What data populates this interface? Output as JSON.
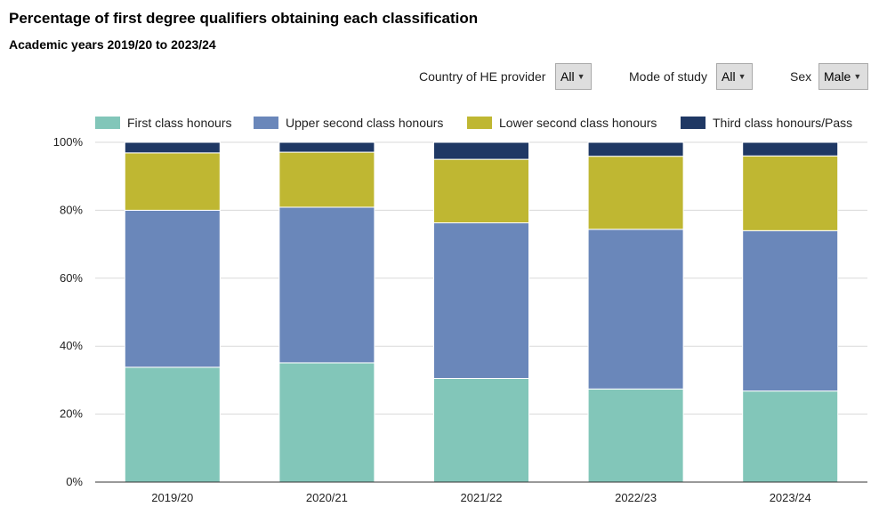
{
  "header": {
    "title": "Percentage of first degree qualifiers obtaining each classification",
    "subtitle": "Academic years 2019/20 to 2023/24"
  },
  "filters": {
    "country": {
      "label": "Country of HE provider",
      "value": "All"
    },
    "mode": {
      "label": "Mode of study",
      "value": "All"
    },
    "sex": {
      "label": "Sex",
      "value": "Male"
    }
  },
  "icons": {
    "dropdown_caret": "caret-down-icon"
  },
  "chart_data": {
    "type": "bar",
    "stacked": true,
    "categories": [
      "2019/20",
      "2020/21",
      "2021/22",
      "2022/23",
      "2023/24"
    ],
    "series": [
      {
        "name": "First class honours",
        "color": "#82c6b9",
        "values": [
          33.8,
          35.1,
          30.5,
          27.4,
          26.8
        ]
      },
      {
        "name": "Upper second class honours",
        "color": "#6a87ba",
        "values": [
          46.2,
          45.8,
          45.8,
          47.0,
          47.2
        ]
      },
      {
        "name": "Lower second class honours",
        "color": "#bfb732",
        "values": [
          16.9,
          16.2,
          18.7,
          21.5,
          22.0
        ]
      },
      {
        "name": "Third class honours/Pass",
        "color": "#1f3864",
        "values": [
          3.1,
          2.9,
          5.0,
          4.1,
          4.0
        ]
      }
    ],
    "ylim": [
      0,
      100
    ],
    "yticks": [
      "0%",
      "20%",
      "40%",
      "60%",
      "80%",
      "100%"
    ],
    "ytick_values": [
      0,
      20,
      40,
      60,
      80,
      100
    ],
    "xlabel": "",
    "ylabel": "",
    "grid": true,
    "legend_position": "top"
  }
}
